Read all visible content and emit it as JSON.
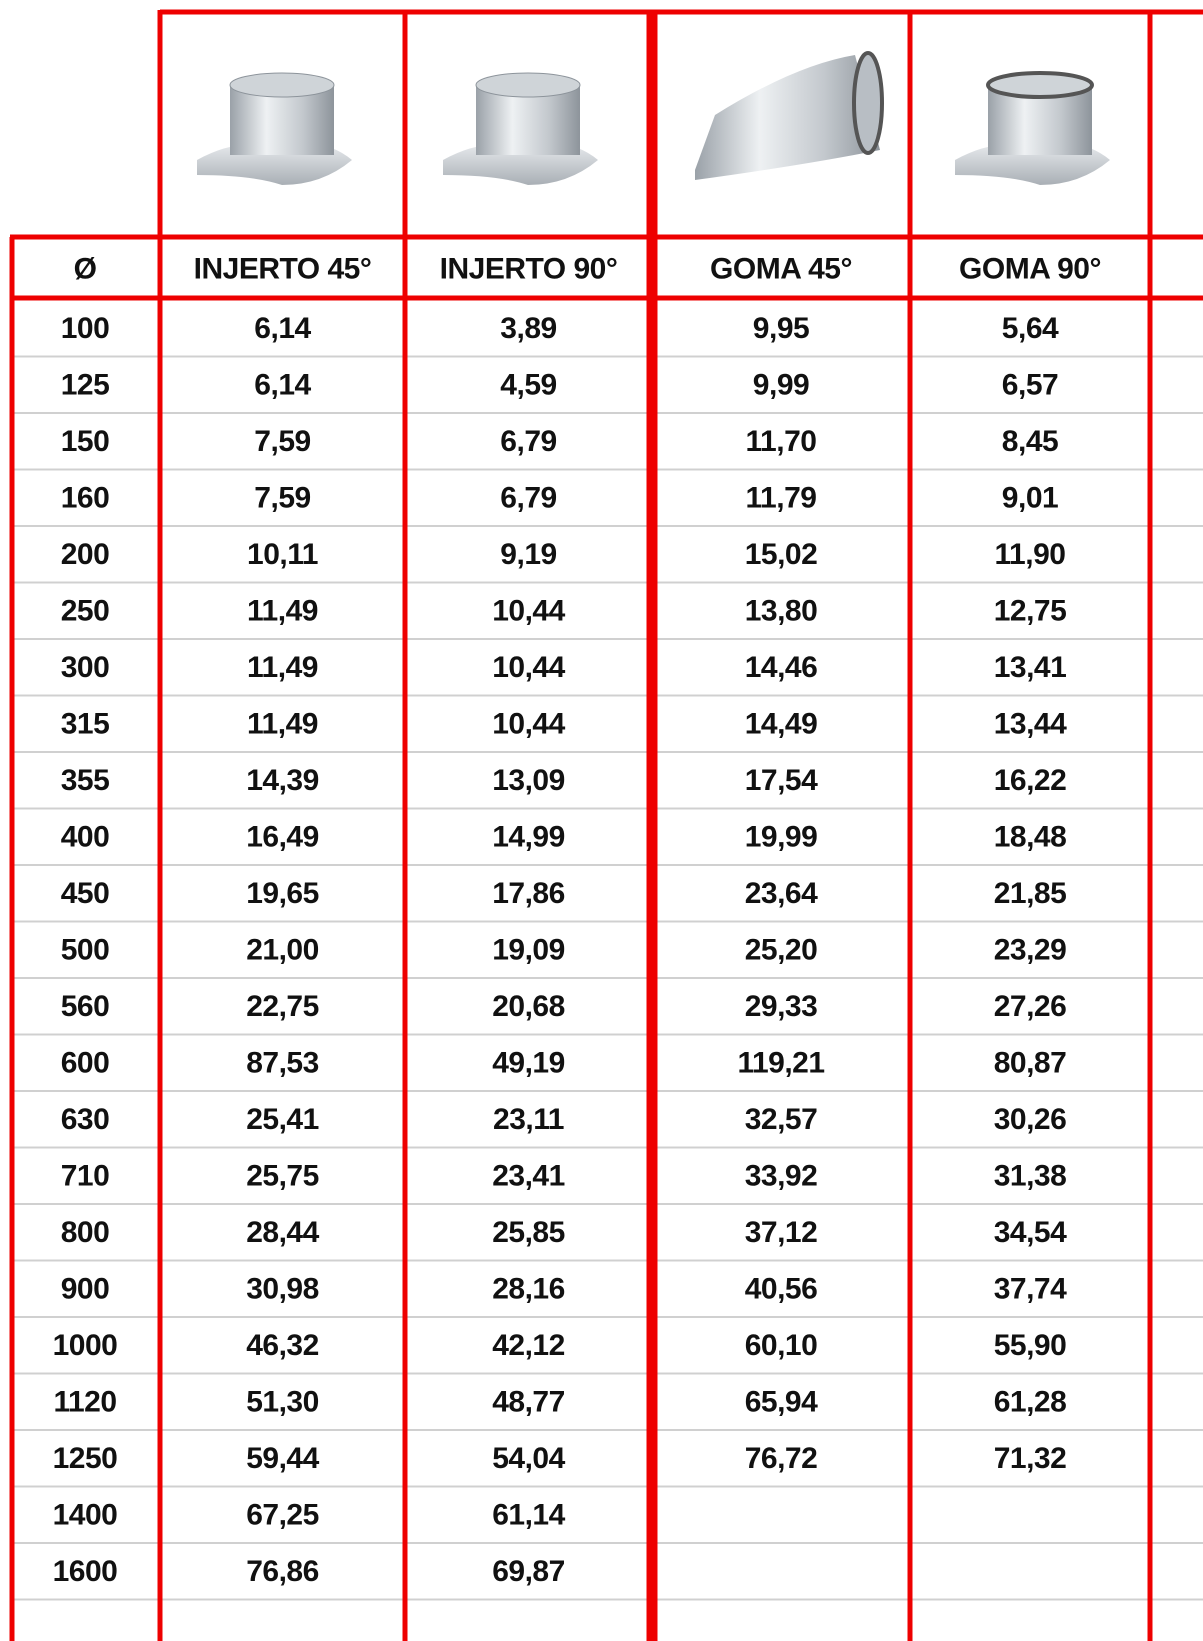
{
  "table": {
    "headers": [
      "Ø",
      "INJERTO 45°",
      "INJERTO 90°",
      "GOMA 45°",
      "GOMA 90°"
    ],
    "rows": [
      [
        "100",
        "6,14",
        "3,89",
        "9,95",
        "5,64"
      ],
      [
        "125",
        "6,14",
        "4,59",
        "9,99",
        "6,57"
      ],
      [
        "150",
        "7,59",
        "6,79",
        "11,70",
        "8,45"
      ],
      [
        "160",
        "7,59",
        "6,79",
        "11,79",
        "9,01"
      ],
      [
        "200",
        "10,11",
        "9,19",
        "15,02",
        "11,90"
      ],
      [
        "250",
        "11,49",
        "10,44",
        "13,80",
        "12,75"
      ],
      [
        "300",
        "11,49",
        "10,44",
        "14,46",
        "13,41"
      ],
      [
        "315",
        "11,49",
        "10,44",
        "14,49",
        "13,44"
      ],
      [
        "355",
        "14,39",
        "13,09",
        "17,54",
        "16,22"
      ],
      [
        "400",
        "16,49",
        "14,99",
        "19,99",
        "18,48"
      ],
      [
        "450",
        "19,65",
        "17,86",
        "23,64",
        "21,85"
      ],
      [
        "500",
        "21,00",
        "19,09",
        "25,20",
        "23,29"
      ],
      [
        "560",
        "22,75",
        "20,68",
        "29,33",
        "27,26"
      ],
      [
        "600",
        "87,53",
        "49,19",
        "119,21",
        "80,87"
      ],
      [
        "630",
        "25,41",
        "23,11",
        "32,57",
        "30,26"
      ],
      [
        "710",
        "25,75",
        "23,41",
        "33,92",
        "31,38"
      ],
      [
        "800",
        "28,44",
        "25,85",
        "37,12",
        "34,54"
      ],
      [
        "900",
        "30,98",
        "28,16",
        "40,56",
        "37,74"
      ],
      [
        "1000",
        "46,32",
        "42,12",
        "60,10",
        "55,90"
      ],
      [
        "1120",
        "51,30",
        "48,77",
        "65,94",
        "61,28"
      ],
      [
        "1250",
        "59,44",
        "54,04",
        "76,72",
        "71,32"
      ],
      [
        "1400",
        "67,25",
        "61,14",
        null,
        null
      ],
      [
        "1600",
        "76,86",
        "69,87",
        null,
        null
      ]
    ]
  }
}
